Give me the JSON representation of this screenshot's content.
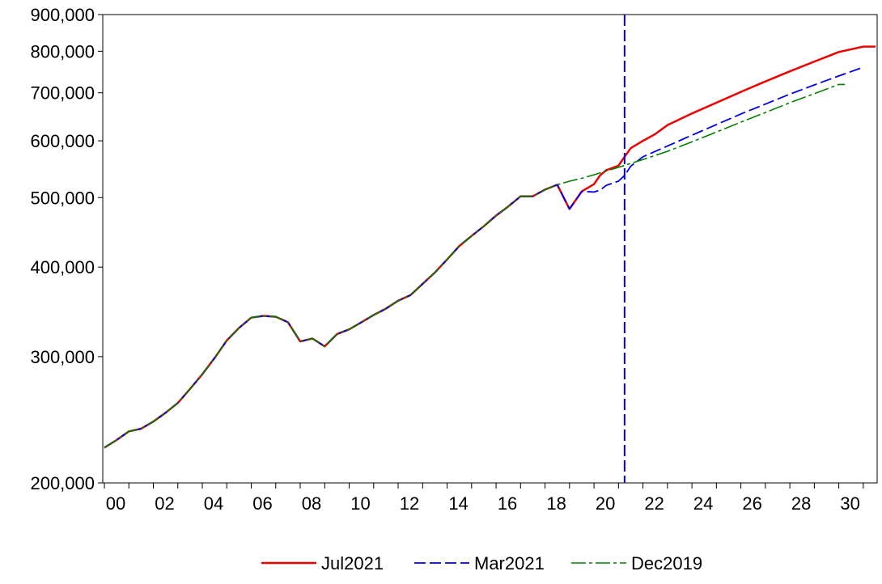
{
  "chart_data": {
    "type": "line",
    "title": "",
    "xlabel": "",
    "ylabel": "",
    "y_scale": "log",
    "ylim": [
      200000,
      900000
    ],
    "xlim": [
      0,
      31.5
    ],
    "x_ticks": [
      0,
      2,
      4,
      6,
      8,
      10,
      12,
      14,
      16,
      18,
      20,
      22,
      24,
      26,
      28,
      30
    ],
    "x_tick_labels": [
      "00",
      "02",
      "04",
      "06",
      "08",
      "10",
      "12",
      "14",
      "16",
      "18",
      "20",
      "22",
      "24",
      "26",
      "28",
      "30"
    ],
    "y_ticks": [
      200000,
      300000,
      400000,
      500000,
      600000,
      700000,
      800000,
      900000
    ],
    "y_tick_labels": [
      "200,000",
      "300,000",
      "400,000",
      "500,000",
      "600,000",
      "700,000",
      "800,000",
      "900,000"
    ],
    "grid": false,
    "legend_position": "bottom-center",
    "vertical_marker": {
      "x": 21.25,
      "color": "#0000ee",
      "style": "dashed"
    },
    "series": [
      {
        "name": "Jul2021",
        "color": "#ee0000",
        "dash": "solid",
        "x": [
          0,
          0.5,
          1,
          1.5,
          2,
          2.5,
          3,
          3.5,
          4,
          4.5,
          5,
          5.5,
          6,
          6.5,
          7,
          7.5,
          8,
          8.5,
          9,
          9.5,
          10,
          10.5,
          11,
          11.5,
          12,
          12.5,
          13,
          13.5,
          14,
          14.5,
          15,
          15.5,
          16,
          16.5,
          17,
          17.5,
          18,
          18.5,
          19,
          19.5,
          20,
          20.25,
          20.5,
          21,
          21.25,
          21.5,
          22,
          22.5,
          23,
          24,
          25,
          26,
          27,
          28,
          29,
          30,
          31,
          31.5
        ],
        "values": [
          224000,
          229500,
          236000,
          238000,
          243500,
          250500,
          258500,
          270500,
          283500,
          298500,
          316000,
          329000,
          340000,
          342000,
          341000,
          335000,
          315000,
          318000,
          310000,
          322500,
          327500,
          335000,
          343000,
          350000,
          359000,
          365500,
          379000,
          393000,
          410000,
          428000,
          442000,
          456000,
          472000,
          486000,
          502000,
          502000,
          513000,
          521000,
          482000,
          510000,
          522000,
          537000,
          546000,
          554000,
          570000,
          586000,
          600000,
          613000,
          631000,
          655000,
          678000,
          702000,
          726000,
          750000,
          774000,
          798000,
          812000,
          812000
        ]
      },
      {
        "name": "Mar2021",
        "color": "#0000ee",
        "dash": "dashed",
        "x": [
          0,
          0.5,
          1,
          1.5,
          2,
          2.5,
          3,
          3.5,
          4,
          4.5,
          5,
          5.5,
          6,
          6.5,
          7,
          7.5,
          8,
          8.5,
          9,
          9.5,
          10,
          10.5,
          11,
          11.5,
          12,
          12.5,
          13,
          13.5,
          14,
          14.5,
          15,
          15.5,
          16,
          16.5,
          17,
          17.5,
          18,
          18.5,
          19,
          19.5,
          20,
          20.25,
          20.5,
          21,
          21.25,
          21.5,
          22,
          23,
          24,
          25,
          26,
          27,
          28,
          29,
          30,
          31
        ],
        "values": [
          224000,
          229500,
          236000,
          238000,
          243500,
          250500,
          258500,
          270500,
          283500,
          298500,
          316000,
          329000,
          340000,
          342000,
          341000,
          335000,
          315000,
          318000,
          310000,
          322500,
          327500,
          335000,
          343000,
          350000,
          359000,
          365500,
          379000,
          393000,
          410000,
          428000,
          442000,
          456000,
          472000,
          486000,
          502000,
          502000,
          513000,
          521000,
          482000,
          510000,
          509000,
          512000,
          520000,
          527000,
          537000,
          553000,
          570000,
          590000,
          611000,
          632000,
          654000,
          675000,
          697000,
          718000,
          739000,
          760000
        ]
      },
      {
        "name": "Dec2019",
        "color": "#008000",
        "dash": "dashdot",
        "x": [
          0,
          0.5,
          1,
          1.5,
          2,
          2.5,
          3,
          3.5,
          4,
          4.5,
          5,
          5.5,
          6,
          6.5,
          7,
          7.5,
          8,
          8.5,
          9,
          9.5,
          10,
          10.5,
          11,
          11.5,
          12,
          12.5,
          13,
          13.5,
          14,
          14.5,
          15,
          15.5,
          16,
          16.5,
          17,
          17.5,
          18,
          18.5,
          19,
          19.5,
          20,
          21,
          22,
          23,
          24,
          25,
          26,
          27,
          28,
          29,
          30,
          30.25
        ],
        "values": [
          224000,
          229500,
          236000,
          238000,
          243500,
          250500,
          258500,
          270500,
          283500,
          298500,
          316000,
          329000,
          340000,
          342000,
          341000,
          335000,
          315000,
          318000,
          310000,
          322500,
          327500,
          335000,
          343000,
          350000,
          359000,
          365500,
          379000,
          393000,
          410000,
          428000,
          442000,
          456000,
          472000,
          486000,
          502000,
          502000,
          513000,
          521000,
          527000,
          532000,
          538000,
          551000,
          565000,
          580000,
          598000,
          617000,
          637000,
          657000,
          678000,
          698000,
          719000,
          719000
        ]
      }
    ]
  }
}
